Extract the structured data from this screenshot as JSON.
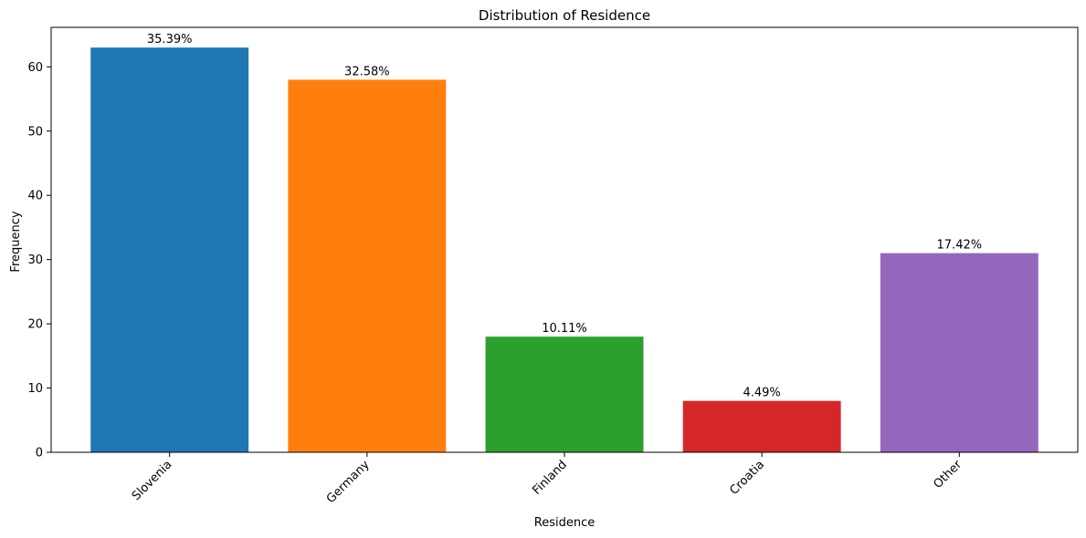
{
  "chart_data": {
    "type": "bar",
    "title": "Distribution of Residence",
    "xlabel": "Residence",
    "ylabel": "Frequency",
    "categories": [
      "Slovenia",
      "Germany",
      "Finland",
      "Croatia",
      "Other"
    ],
    "values": [
      63,
      58,
      18,
      8,
      31
    ],
    "data_labels": [
      "35.39%",
      "32.58%",
      "10.11%",
      "4.49%",
      "17.42%"
    ],
    "colors": [
      "#1f77b4",
      "#ff7f0e",
      "#2ca02c",
      "#d62728",
      "#9467bd"
    ],
    "ylim": [
      0,
      66.15
    ],
    "yticks": [
      0,
      10,
      20,
      30,
      40,
      50,
      60
    ],
    "grid": false,
    "legend": "none"
  }
}
